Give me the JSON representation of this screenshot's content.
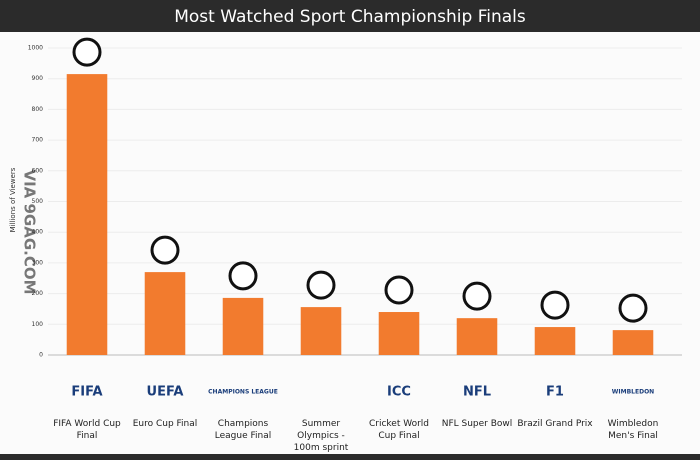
{
  "chart_data": {
    "type": "bar",
    "title": "Most Watched Sport Championship Finals",
    "y_label": "Millions of Viewers",
    "watermark": "VIA 9GAG.COM",
    "categories": [
      "FIFA World Cup Final",
      "Euro Cup Final",
      "Champions League Final",
      "Summer Olympics - 100m sprint",
      "Cricket World Cup Final",
      "NFL Super Bowl",
      "Brazil Grand Prix",
      "Wimbledon Men's Final"
    ],
    "logos": [
      "FIFA",
      "UEFA",
      "CHAMPIONS LEAGUE",
      "",
      "ICC",
      "NFL",
      "F1",
      "WIMBLEDON"
    ],
    "values": [
      915,
      270,
      186,
      156,
      140,
      120,
      91,
      81
    ],
    "color": "#f27b2e",
    "ylim": [
      0,
      1000
    ],
    "yticks": [
      0,
      100,
      200,
      300,
      400,
      500,
      600,
      700,
      800,
      900,
      1000
    ],
    "grid": true
  }
}
